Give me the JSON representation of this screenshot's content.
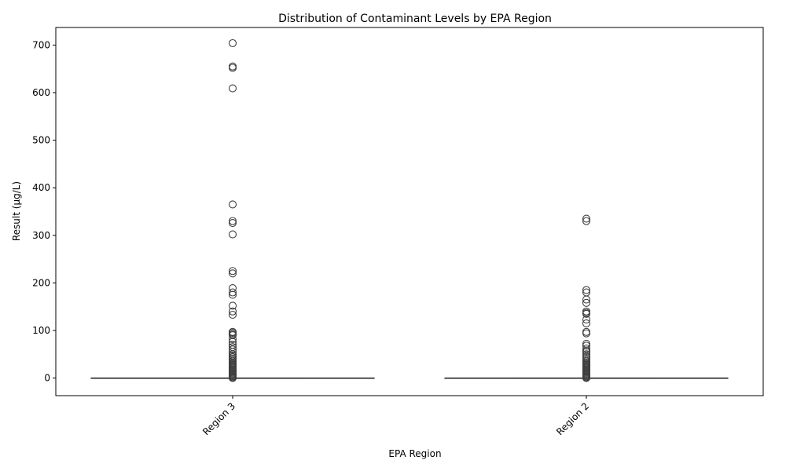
{
  "chart_data": {
    "type": "box",
    "title": "Distribution of Contaminant Levels by EPA Region",
    "xlabel": "EPA Region",
    "ylabel": "Result (µg/L)",
    "ylim": [
      -37,
      737
    ],
    "yticks": [
      0,
      100,
      200,
      300,
      400,
      500,
      600,
      700
    ],
    "ytick_labels": [
      "0",
      "100",
      "200",
      "300",
      "400",
      "500",
      "600",
      "700"
    ],
    "grid": false,
    "legend": "none",
    "colors": {
      "box_stroke": "#3f3f3f",
      "outlier_stroke": "#3f3f3f"
    },
    "categories": [
      "Region 3",
      "Region 2"
    ],
    "series": [
      {
        "category": "Region 3",
        "min": 0,
        "q1": 0,
        "median": 0,
        "q3": 0,
        "max": 0,
        "outliers": [
          704,
          655,
          652,
          609,
          365,
          330,
          326,
          302,
          225,
          220,
          189,
          180,
          175,
          152,
          140,
          133,
          97,
          95,
          92,
          90,
          82,
          76,
          70,
          65,
          60,
          55,
          50,
          47,
          44,
          41,
          38,
          35,
          32,
          30,
          28,
          26,
          24,
          22,
          20,
          18,
          16,
          14,
          12,
          10,
          8,
          6,
          4,
          2,
          1,
          0
        ]
      },
      {
        "category": "Region 2",
        "min": 0,
        "q1": 0,
        "median": 0,
        "q3": 0,
        "max": 0,
        "outliers": [
          335,
          330,
          185,
          180,
          165,
          158,
          140,
          137,
          135,
          123,
          115,
          97,
          94,
          72,
          68,
          62,
          58,
          55,
          50,
          46,
          42,
          38,
          35,
          32,
          30,
          28,
          26,
          24,
          22,
          20,
          18,
          16,
          14,
          12,
          10,
          8,
          6,
          4,
          2,
          1,
          0
        ]
      }
    ]
  }
}
